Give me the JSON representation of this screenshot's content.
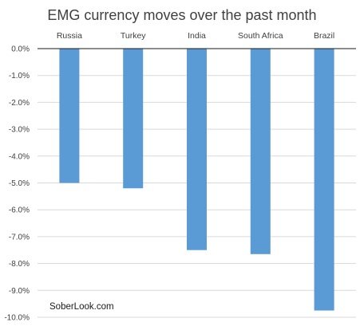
{
  "chart_data": {
    "type": "bar",
    "title": "EMG currency moves over the past month",
    "xlabel": "",
    "ylabel": "",
    "categories": [
      "Russia",
      "Turkey",
      "India",
      "South Africa",
      "Brazil"
    ],
    "values": [
      -5.0,
      -5.2,
      -7.5,
      -7.65,
      -9.75
    ],
    "ylim": [
      -10,
      0
    ],
    "y_ticks": [
      0,
      -1,
      -2,
      -3,
      -4,
      -5,
      -6,
      -7,
      -8,
      -9,
      -10
    ],
    "y_tick_labels": [
      "0.0%",
      "-1.0%",
      "-2.0%",
      "-3.0%",
      "-4.0%",
      "-5.0%",
      "-6.0%",
      "-7.0%",
      "-8.0%",
      "-9.0%",
      "-10.0%"
    ],
    "category_labels_position": "top",
    "grid": true,
    "bar_color": "#5b9bd5",
    "annotation": "SoberLook.com"
  }
}
